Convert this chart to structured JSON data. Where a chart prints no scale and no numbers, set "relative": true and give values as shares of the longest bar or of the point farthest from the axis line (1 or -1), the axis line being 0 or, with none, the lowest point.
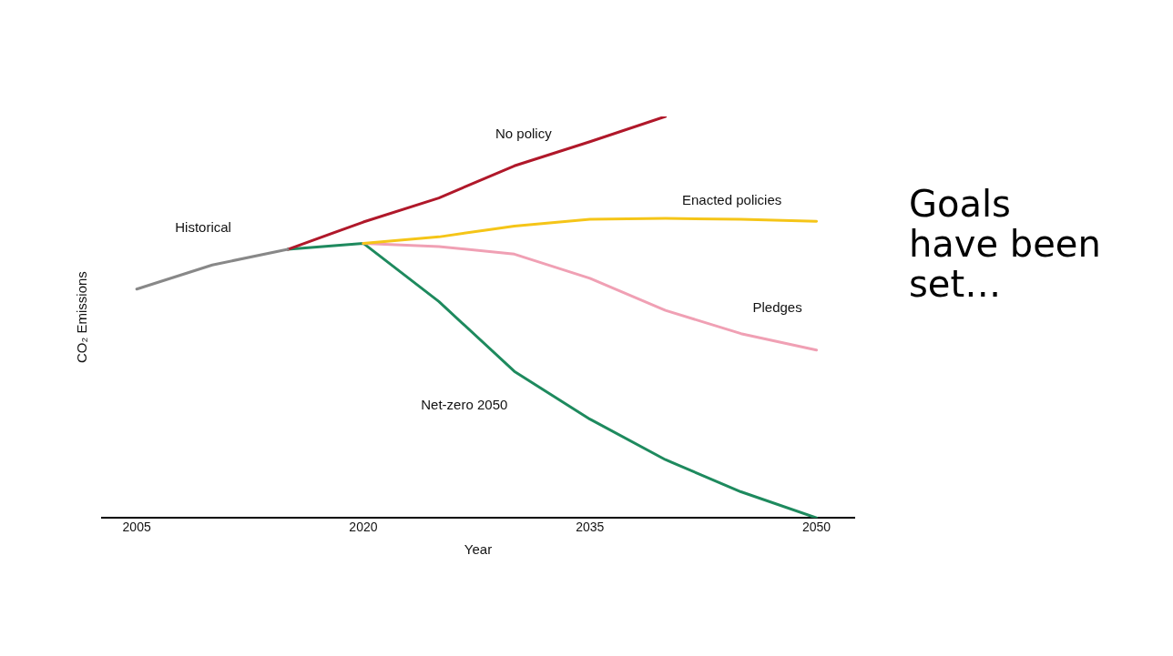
{
  "chart_data": {
    "type": "line",
    "relative": true,
    "xlabel": "Year",
    "ylabel": "CO₂ Emissions",
    "xlim": [
      2002.7,
      2052.5
    ],
    "xticks": [
      2005,
      2020,
      2035,
      2050
    ],
    "grid": false,
    "legend": false,
    "marker": "none",
    "line_style": "solid",
    "annotations": [
      "Goals have been set…"
    ],
    "series": [
      {
        "name": "Historical",
        "color": "#888888",
        "x": [
          2005,
          2010,
          2015
        ],
        "values": [
          0.57,
          0.63,
          0.669
        ]
      },
      {
        "name": "No policy",
        "color": "#b0182a",
        "x": [
          2015,
          2020,
          2025,
          2030,
          2035,
          2040
        ],
        "values": [
          0.669,
          0.737,
          0.797,
          0.877,
          0.937,
          1
        ]
      },
      {
        "name": "Enacted policies",
        "color": "#f5c518",
        "x": [
          2020,
          2025,
          2030,
          2035,
          2040,
          2045,
          2050
        ],
        "values": [
          0.684,
          0.7,
          0.727,
          0.744,
          0.746,
          0.744,
          0.739
        ]
      },
      {
        "name": "Pledges",
        "color": "#f0a0b4",
        "x": [
          2020,
          2025,
          2030,
          2035,
          2040,
          2045,
          2050
        ],
        "values": [
          0.684,
          0.676,
          0.657,
          0.597,
          0.517,
          0.459,
          0.418
        ]
      },
      {
        "name": "Net-zero 2050",
        "color": "#1e8a5e",
        "x": [
          2015,
          2020,
          2025,
          2030,
          2035,
          2040,
          2045,
          2050
        ],
        "values": [
          0.669,
          0.684,
          0.539,
          0.365,
          0.246,
          0.145,
          0.065,
          0
        ]
      }
    ]
  }
}
